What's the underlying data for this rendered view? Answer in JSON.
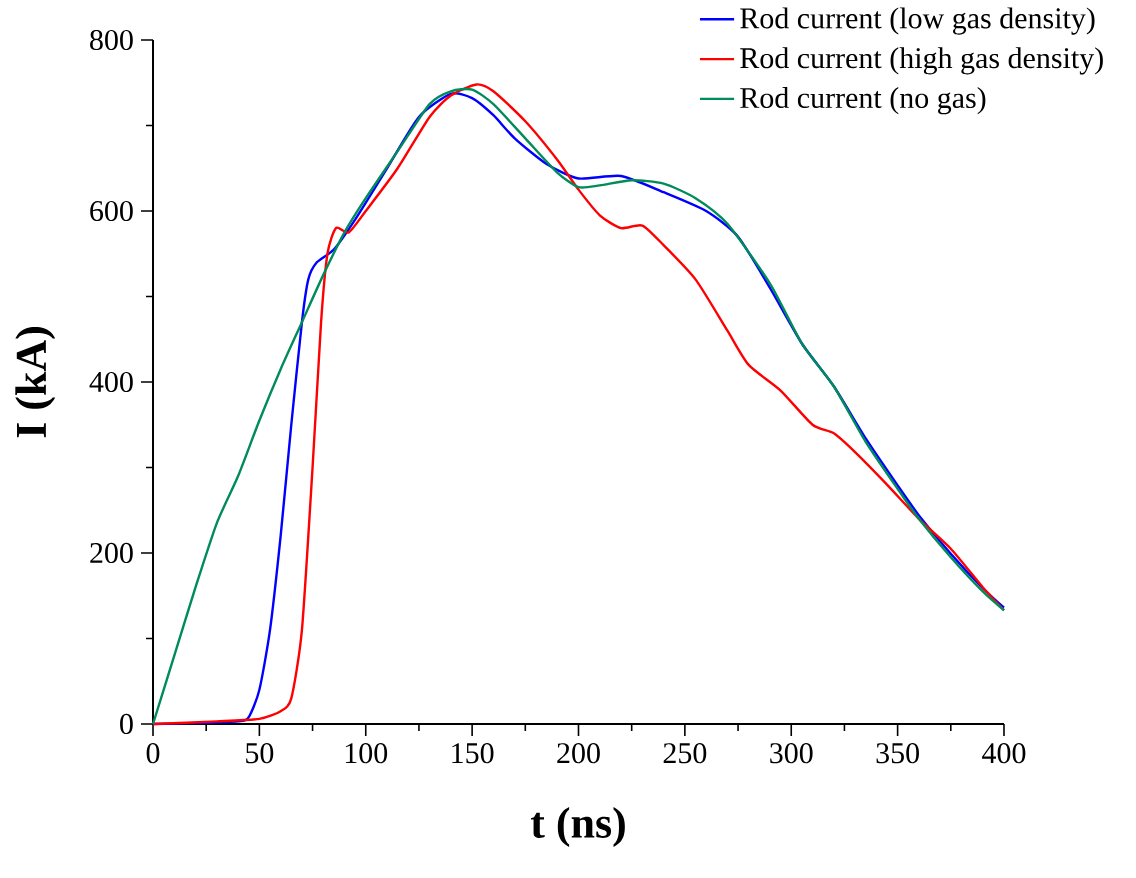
{
  "chart_data": {
    "type": "line",
    "xlabel": "t (ns)",
    "ylabel": "I (kA)",
    "xlim": [
      0,
      400
    ],
    "ylim": [
      0,
      800
    ],
    "xticks": [
      0,
      50,
      100,
      150,
      200,
      250,
      300,
      350,
      400
    ],
    "yticks": [
      0,
      200,
      400,
      600,
      800
    ],
    "legend": "top right",
    "line_style": "solid",
    "series": [
      {
        "name": "Rod current (low gas density)",
        "color": "#0000ff",
        "x": [
          0,
          20,
          40,
          45,
          50,
          55,
          60,
          65,
          70,
          73,
          77,
          85,
          95,
          110,
          125,
          140,
          150,
          160,
          170,
          185,
          200,
          220,
          240,
          260,
          275,
          290,
          305,
          320,
          335,
          350,
          360,
          375,
          390,
          400
        ],
        "values": [
          0,
          1,
          3,
          8,
          40,
          110,
          220,
          350,
          470,
          520,
          540,
          555,
          590,
          650,
          710,
          737,
          732,
          712,
          685,
          655,
          638,
          641,
          622,
          600,
          570,
          510,
          445,
          395,
          334,
          279,
          244,
          199,
          159,
          136
        ]
      },
      {
        "name": "Rod current (high gas density)",
        "color": "#ff0000",
        "x": [
          0,
          30,
          50,
          60,
          65,
          70,
          75,
          79,
          82,
          86,
          92,
          100,
          115,
          130,
          140,
          152,
          160,
          175,
          190,
          200,
          210,
          220,
          230,
          240,
          255,
          270,
          280,
          295,
          310,
          320,
          330,
          345,
          360,
          375,
          390,
          400
        ],
        "values": [
          0,
          3,
          6,
          15,
          30,
          110,
          300,
          470,
          550,
          580,
          575,
          600,
          650,
          710,
          735,
          748,
          740,
          705,
          660,
          625,
          595,
          580,
          583,
          560,
          520,
          460,
          420,
          390,
          350,
          340,
          318,
          280,
          240,
          205,
          160,
          133
        ]
      },
      {
        "name": "Rod current (no gas)",
        "color": "#008b5a",
        "x": [
          0,
          10,
          20,
          30,
          40,
          50,
          60,
          70,
          80,
          90,
          100,
          115,
          130,
          140,
          150,
          160,
          175,
          190,
          200,
          210,
          225,
          240,
          255,
          270,
          290,
          305,
          320,
          335,
          350,
          360,
          375,
          390,
          400
        ],
        "values": [
          0,
          80,
          160,
          235,
          290,
          355,
          415,
          470,
          525,
          575,
          615,
          670,
          725,
          740,
          742,
          725,
          685,
          645,
          628,
          630,
          636,
          632,
          615,
          585,
          515,
          445,
          395,
          330,
          275,
          240,
          195,
          155,
          133
        ]
      }
    ]
  }
}
